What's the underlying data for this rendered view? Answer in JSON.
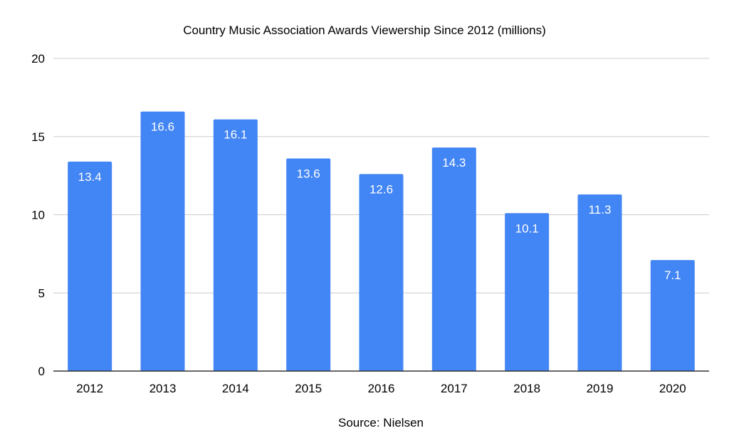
{
  "chart_data": {
    "type": "bar",
    "title": "Country Music Association Awards Viewership Since 2012 (millions)",
    "xlabel": "Source: Nielsen",
    "ylabel": "",
    "categories": [
      "2012",
      "2013",
      "2014",
      "2015",
      "2016",
      "2017",
      "2018",
      "2019",
      "2020"
    ],
    "values": [
      13.4,
      16.6,
      16.1,
      13.6,
      12.6,
      14.3,
      10.1,
      11.3,
      7.1
    ],
    "value_labels": [
      "13.4",
      "16.6",
      "16.1",
      "13.6",
      "12.6",
      "14.3",
      "10.1",
      "11.3",
      "7.1"
    ],
    "ylim": [
      0,
      20
    ],
    "yticks": [
      0,
      5,
      10,
      15,
      20
    ],
    "ytick_labels": [
      "0",
      "5",
      "10",
      "15",
      "20"
    ],
    "grid": true,
    "legend": "none",
    "colors": {
      "bar": "#4285F4",
      "bar_label": "#ffffff",
      "grid": "#cccccc",
      "axis": "#333333",
      "text": "#000000"
    }
  }
}
